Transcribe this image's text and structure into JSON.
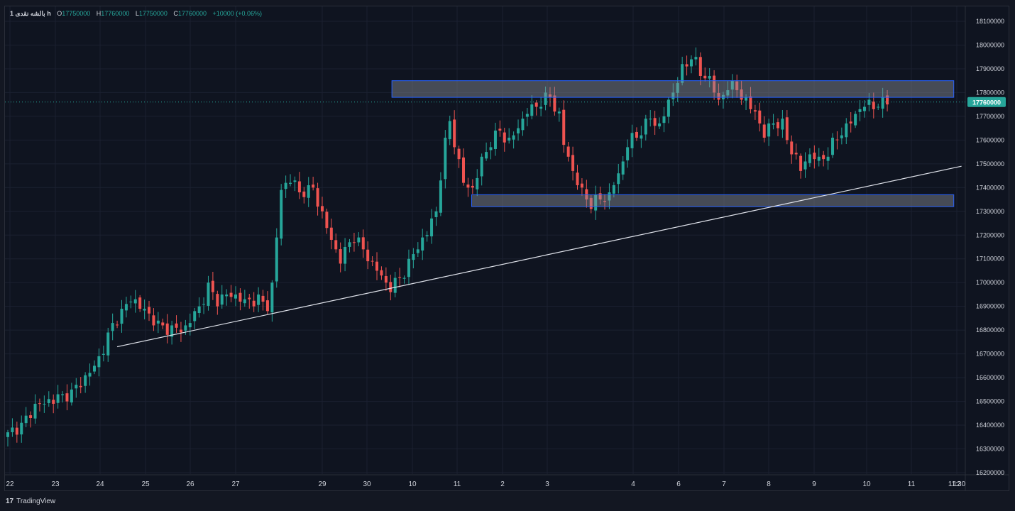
{
  "legend": {
    "symbol": "1 بالشه نقدی h",
    "o_label": "O",
    "o_value": "17750000",
    "h_label": "H",
    "h_value": "17760000",
    "l_label": "L",
    "l_value": "17750000",
    "c_label": "C",
    "c_value": "17760000",
    "change": "+10000 (+0.06%)"
  },
  "price_label": "17760000",
  "footer": {
    "brand": "TradingView",
    "logo_glyph": "17"
  },
  "colors": {
    "up": "#26a69a",
    "down": "#ef5350",
    "background": "#0f1420",
    "zone_fill": "#8a8f99",
    "zone_border": "#2962ff",
    "trendline": "#e0e3eb",
    "price_tag": "#26a69a"
  },
  "chart_data": {
    "type": "candlestick",
    "title": "",
    "ylim": [
      16200000,
      18100000
    ],
    "y_ticks": [
      16200000,
      16300000,
      16400000,
      16500000,
      16600000,
      16700000,
      16800000,
      16900000,
      17000000,
      17100000,
      17200000,
      17300000,
      17400000,
      17500000,
      17600000,
      17700000,
      17800000,
      17900000,
      18000000,
      18100000
    ],
    "x_tick_labels": [
      "22",
      "23",
      "24",
      "25",
      "26",
      "27",
      "29",
      "30",
      "10",
      "11",
      "2",
      "3",
      "4",
      "6",
      "7",
      "8",
      "9",
      "10",
      "11",
      "11:30",
      "12"
    ],
    "last_price": 17760000,
    "zones": [
      {
        "from": 17780000,
        "to": 17850000,
        "x_start": 84.6,
        "x_end": 207.9
      },
      {
        "from": 17320000,
        "to": 17370000,
        "x_start": 102.1,
        "x_end": 207.9
      }
    ],
    "trendlines": [
      {
        "x1": 24.3,
        "y1": 16730000,
        "x2": 209.6,
        "y2": 17490000
      }
    ],
    "anchors": [
      [
        0,
        16360000
      ],
      [
        3,
        16400000
      ],
      [
        6,
        16480000
      ],
      [
        9,
        16500000
      ],
      [
        12,
        16520000
      ],
      [
        14,
        16530000
      ],
      [
        17,
        16600000
      ],
      [
        19,
        16650000
      ],
      [
        21,
        16720000
      ],
      [
        23,
        16820000
      ],
      [
        25,
        16870000
      ],
      [
        27,
        16940000
      ],
      [
        30,
        16880000
      ],
      [
        33,
        16820000
      ],
      [
        36,
        16800000
      ],
      [
        39,
        16810000
      ],
      [
        42,
        16900000
      ],
      [
        44,
        16980000
      ],
      [
        46,
        16930000
      ],
      [
        49,
        16950000
      ],
      [
        52,
        16920000
      ],
      [
        55,
        16930000
      ],
      [
        57,
        16900000
      ],
      [
        58,
        16990000
      ],
      [
        60,
        17390000
      ],
      [
        62,
        17440000
      ],
      [
        64,
        17380000
      ],
      [
        67,
        17390000
      ],
      [
        69,
        17290000
      ],
      [
        71,
        17180000
      ],
      [
        73,
        17100000
      ],
      [
        76,
        17200000
      ],
      [
        78,
        17140000
      ],
      [
        80,
        17080000
      ],
      [
        82,
        17020000
      ],
      [
        84,
        16980000
      ],
      [
        86,
        17020000
      ],
      [
        88,
        17080000
      ],
      [
        90,
        17150000
      ],
      [
        92,
        17210000
      ],
      [
        94,
        17300000
      ],
      [
        95,
        17450000
      ],
      [
        96,
        17580000
      ],
      [
        97,
        17680000
      ],
      [
        99,
        17500000
      ],
      [
        100,
        17420000
      ],
      [
        102,
        17390000
      ],
      [
        104,
        17510000
      ],
      [
        106,
        17590000
      ],
      [
        108,
        17640000
      ],
      [
        110,
        17590000
      ],
      [
        112,
        17650000
      ],
      [
        114,
        17720000
      ],
      [
        117,
        17760000
      ],
      [
        119,
        17780000
      ],
      [
        121,
        17700000
      ],
      [
        122,
        17580000
      ],
      [
        124,
        17470000
      ],
      [
        126,
        17380000
      ],
      [
        128,
        17330000
      ],
      [
        130,
        17350000
      ],
      [
        132,
        17370000
      ],
      [
        134,
        17450000
      ],
      [
        136,
        17580000
      ],
      [
        139,
        17640000
      ],
      [
        141,
        17690000
      ],
      [
        143,
        17660000
      ],
      [
        145,
        17760000
      ],
      [
        147,
        17860000
      ],
      [
        149,
        17920000
      ],
      [
        150,
        17960000
      ],
      [
        152,
        17880000
      ],
      [
        154,
        17860000
      ],
      [
        156,
        17760000
      ],
      [
        158,
        17830000
      ],
      [
        160,
        17820000
      ],
      [
        162,
        17760000
      ],
      [
        164,
        17720000
      ],
      [
        166,
        17620000
      ],
      [
        168,
        17680000
      ],
      [
        170,
        17660000
      ],
      [
        172,
        17560000
      ],
      [
        174,
        17480000
      ],
      [
        176,
        17540000
      ],
      [
        178,
        17510000
      ],
      [
        180,
        17550000
      ],
      [
        182,
        17610000
      ],
      [
        184,
        17650000
      ],
      [
        186,
        17710000
      ],
      [
        188,
        17750000
      ],
      [
        191,
        17750000
      ],
      [
        193,
        17760000
      ]
    ]
  }
}
